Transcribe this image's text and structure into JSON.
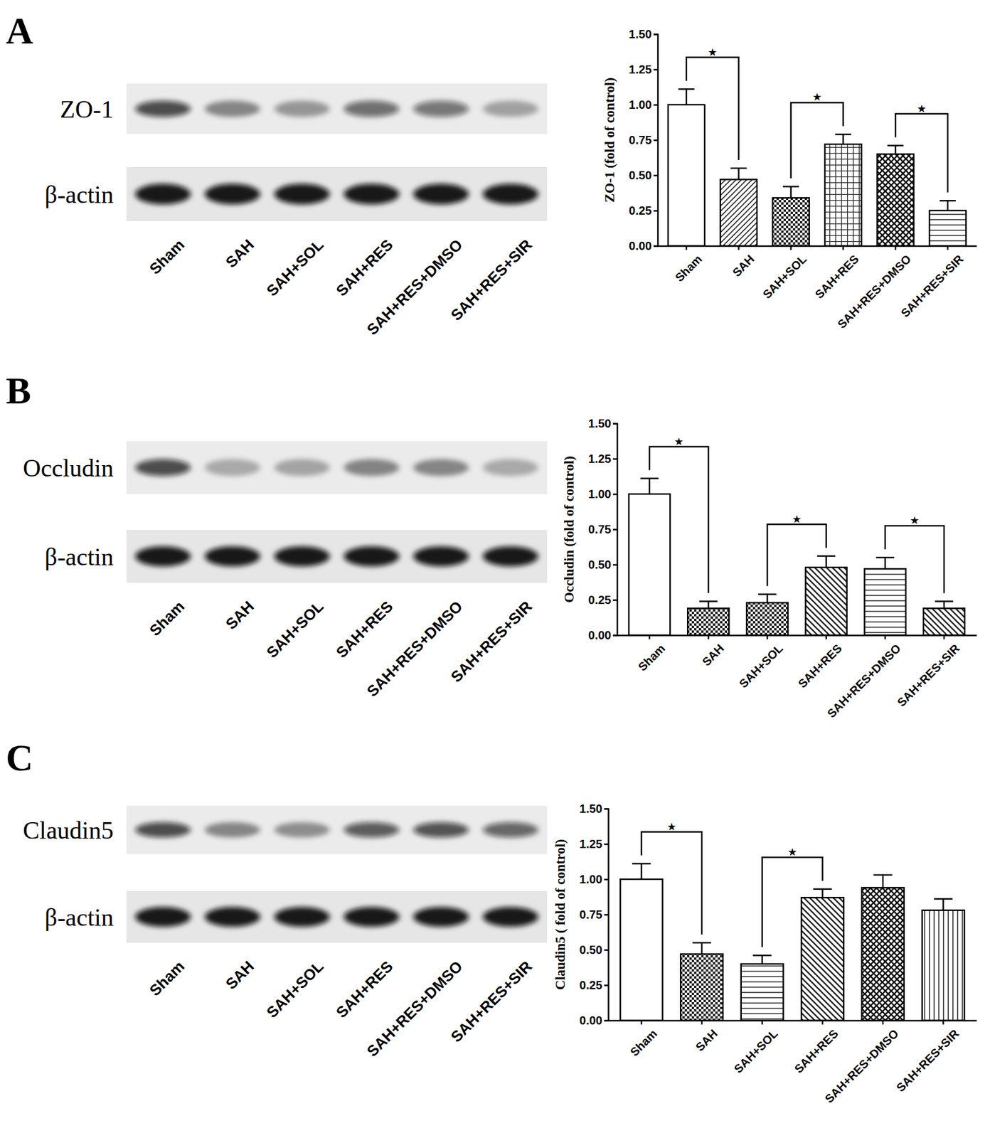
{
  "panels": [
    {
      "letter": "A",
      "blot_labels": [
        "ZO-1",
        "β-actin"
      ],
      "lanes": [
        "Sham",
        "SAH",
        "SAH+SOL",
        "SAH+RES",
        "SAH+RES+DMSO",
        "SAH+RES+SIR"
      ]
    },
    {
      "letter": "B",
      "blot_labels": [
        "Occludin",
        "β-actin"
      ],
      "lanes": [
        "Sham",
        "SAH",
        "SAH+SOL",
        "SAH+RES",
        "SAH+RES+DMSO",
        "SAH+RES+SIR"
      ]
    },
    {
      "letter": "C",
      "blot_labels": [
        "Claudin5",
        "β-actin"
      ],
      "lanes": [
        "Sham",
        "SAH",
        "SAH+SOL",
        "SAH+RES",
        "SAH+RES+DMSO",
        "SAH+RES+SIR"
      ]
    }
  ],
  "chart_data": [
    {
      "type": "bar",
      "y_label": "ZO-1 (fold of control)",
      "categories": [
        "Sham",
        "SAH",
        "SAH+SOL",
        "SAH+RES",
        "SAH+RES+DMSO",
        "SAH+RES+SIR"
      ],
      "values": [
        1.0,
        0.47,
        0.34,
        0.72,
        0.65,
        0.25
      ],
      "errors": [
        0.11,
        0.08,
        0.08,
        0.07,
        0.06,
        0.07
      ],
      "ylim": [
        0,
        1.5
      ],
      "yticks": [
        {
          "value": 0,
          "label": "0.00"
        },
        {
          "value": 0.25,
          "label": "0.25"
        },
        {
          "value": 0.5,
          "label": "0.50"
        },
        {
          "value": 0.75,
          "label": "0.75"
        },
        {
          "value": 1,
          "label": "1.00"
        },
        {
          "value": 1.25,
          "label": "1.25"
        },
        {
          "value": 1.5,
          "label": "1.50"
        }
      ],
      "annotations": [
        {
          "from": "Sham",
          "to": "SAH",
          "label": "★"
        },
        {
          "from": "SAH+SOL",
          "to": "SAH+RES",
          "label": "★"
        },
        {
          "from": "SAH+RES+DMSO",
          "to": "SAH+RES+SIR",
          "label": "★"
        }
      ]
    },
    {
      "type": "bar",
      "y_label": "Occludin (fold of control)",
      "categories": [
        "Sham",
        "SAH",
        "SAH+SOL",
        "SAH+RES",
        "SAH+RES+DMSO",
        "SAH+RES+SIR"
      ],
      "values": [
        1.0,
        0.19,
        0.23,
        0.48,
        0.47,
        0.19
      ],
      "errors": [
        0.11,
        0.05,
        0.06,
        0.08,
        0.08,
        0.05
      ],
      "ylim": [
        0,
        1.5
      ],
      "yticks": [
        {
          "value": 0,
          "label": "0.00"
        },
        {
          "value": 0.25,
          "label": "0.25"
        },
        {
          "value": 0.5,
          "label": "0.50"
        },
        {
          "value": 0.75,
          "label": "0.75"
        },
        {
          "value": 1,
          "label": "1.00"
        },
        {
          "value": 1.25,
          "label": "1.25"
        },
        {
          "value": 1.5,
          "label": "1.50"
        }
      ],
      "annotations": [
        {
          "from": "Sham",
          "to": "SAH",
          "label": "★"
        },
        {
          "from": "SAH+SOL",
          "to": "SAH+RES",
          "label": "★"
        },
        {
          "from": "SAH+RES+DMSO",
          "to": "SAH+RES+SIR",
          "label": "★"
        }
      ]
    },
    {
      "type": "bar",
      "y_label": "Claudin5 ( fold of control)",
      "categories": [
        "Sham",
        "SAH",
        "SAH+SOL",
        "SAH+RES",
        "SAH+RES+DMSO",
        "SAH+RES+SIR"
      ],
      "values": [
        1.0,
        0.47,
        0.4,
        0.87,
        0.94,
        0.78
      ],
      "errors": [
        0.11,
        0.08,
        0.06,
        0.06,
        0.09,
        0.08
      ],
      "ylim": [
        0,
        1.5
      ],
      "yticks": [
        {
          "value": 0,
          "label": "0.00"
        },
        {
          "value": 0.25,
          "label": "0.25"
        },
        {
          "value": 0.5,
          "label": "0.50"
        },
        {
          "value": 0.75,
          "label": "0.75"
        },
        {
          "value": 1,
          "label": "1.00"
        },
        {
          "value": 1.25,
          "label": "1.25"
        },
        {
          "value": 1.5,
          "label": "1.50"
        }
      ],
      "annotations": [
        {
          "from": "Sham",
          "to": "SAH",
          "label": "★"
        },
        {
          "from": "SAH+SOL",
          "to": "SAH+RES",
          "label": "★"
        }
      ]
    }
  ]
}
